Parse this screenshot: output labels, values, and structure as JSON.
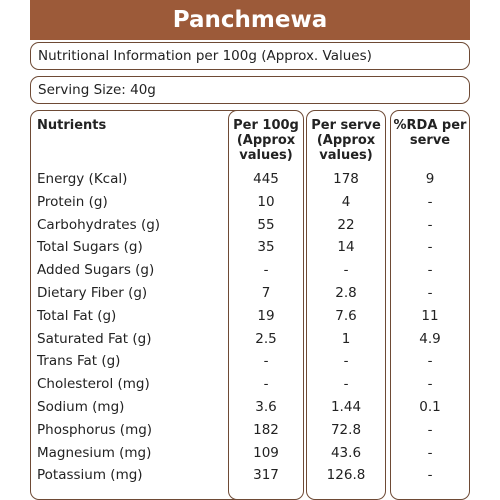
{
  "title": "Panchmewa",
  "info_line": "Nutritional Information per 100g (Approx. Values)",
  "serving": "Serving Size:  40g",
  "headers": {
    "nutrients": "Nutrients",
    "per100": "Per 100g (Approx values)",
    "perserve": "Per serve (Approx values)",
    "rda": "%RDA per serve"
  },
  "rows": [
    {
      "name": "Energy (Kcal)",
      "per100": "445",
      "serve": "178",
      "rda": "9"
    },
    {
      "name": "Protein (g)",
      "per100": "10",
      "serve": "4",
      "rda": "-"
    },
    {
      "name": "Carbohydrates (g)",
      "per100": "55",
      "serve": "22",
      "rda": "-"
    },
    {
      "name": "Total Sugars (g)",
      "per100": "35",
      "serve": "14",
      "rda": "-"
    },
    {
      "name": "Added Sugars (g)",
      "per100": "-",
      "serve": "-",
      "rda": "-"
    },
    {
      "name": "Dietary Fiber (g)",
      "per100": "7",
      "serve": "2.8",
      "rda": "-"
    },
    {
      "name": "Total Fat (g)",
      "per100": "19",
      "serve": "7.6",
      "rda": "11"
    },
    {
      "name": "Saturated Fat (g)",
      "per100": "2.5",
      "serve": "1",
      "rda": "4.9"
    },
    {
      "name": "Trans Fat (g)",
      "per100": "-",
      "serve": "-",
      "rda": "-"
    },
    {
      "name": "Cholesterol (mg)",
      "per100": "-",
      "serve": "-",
      "rda": "-"
    },
    {
      "name": "Sodium (mg)",
      "per100": "3.6",
      "serve": "1.44",
      "rda": "0.1"
    },
    {
      "name": "Phosphorus (mg)",
      "per100": "182",
      "serve": "72.8",
      "rda": "-"
    },
    {
      "name": "Magnesium (mg)",
      "per100": "109",
      "serve": "43.6",
      "rda": "-"
    },
    {
      "name": "Potassium (mg)",
      "per100": "317",
      "serve": "126.8",
      "rda": "-"
    }
  ]
}
